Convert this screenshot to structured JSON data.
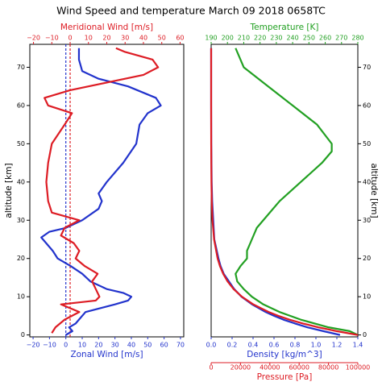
{
  "title": "Wind Speed and temperature March 09 2018 0658TC",
  "chart_data": [
    {
      "type": "line",
      "ylabel": "altitude [km]",
      "y_side": "left",
      "ylim": [
        -0.5,
        76
      ],
      "yticks": [
        0,
        10,
        20,
        30,
        40,
        50,
        60,
        70
      ],
      "zero_lines": true,
      "x_axes": [
        {
          "position": "bottom",
          "label": "Zonal Wind [m/s]",
          "color": "#2233cc",
          "xlim": [
            -22,
            72
          ],
          "xticks": [
            {
              "value": -20,
              "label": "−20"
            },
            {
              "value": -10,
              "label": "−10"
            },
            0,
            10,
            20,
            30,
            40,
            50,
            60,
            70
          ]
        },
        {
          "position": "top",
          "label": "Meridional Wind [m/s]",
          "color": "#dd1c24",
          "xlim": [
            -22,
            62
          ],
          "xticks": [
            {
              "value": -20,
              "label": "−20"
            },
            {
              "value": -10,
              "label": "−10"
            },
            0,
            10,
            20,
            30,
            40,
            50,
            60
          ]
        }
      ],
      "series": [
        {
          "color": "#2233cc",
          "axis": 0,
          "y": [
            0,
            1,
            2,
            3,
            4,
            6,
            8,
            9,
            10,
            11,
            12,
            14,
            16,
            18,
            20,
            22,
            24,
            25.5,
            27,
            28,
            30,
            33,
            35,
            37,
            40,
            45,
            50,
            55,
            58,
            60,
            62,
            65,
            67,
            69,
            72,
            75
          ],
          "values": [
            0,
            4,
            2,
            6,
            8,
            12,
            30,
            38,
            40,
            35,
            25,
            15,
            10,
            3,
            -5,
            -8,
            -12,
            -15,
            -10,
            0,
            10,
            20,
            22,
            20,
            25,
            35,
            43,
            45,
            50,
            58,
            55,
            38,
            20,
            10,
            8,
            8
          ]
        },
        {
          "color": "#dd1c24",
          "axis": 1,
          "y": [
            0.5,
            2,
            4,
            6,
            8,
            9,
            10,
            12,
            14,
            16,
            18,
            20,
            22,
            24,
            26,
            28,
            30,
            32,
            35,
            40,
            45,
            50,
            55,
            58,
            60,
            62,
            64,
            66,
            68,
            70,
            72,
            74,
            75
          ],
          "values": [
            -10,
            -8,
            -3,
            5,
            -5,
            14,
            16,
            14,
            12,
            15,
            8,
            3,
            5,
            2,
            -5,
            -3,
            5,
            -10,
            -12,
            -13,
            -12,
            -10,
            -3,
            1,
            -12,
            -14,
            0,
            20,
            40,
            48,
            45,
            30,
            25
          ]
        }
      ]
    },
    {
      "type": "line",
      "ylabel": "altitude [km]",
      "y_side": "right",
      "ylim": [
        -0.5,
        76
      ],
      "yticks": [
        0,
        10,
        20,
        30,
        40,
        50,
        60,
        70
      ],
      "x_axes": [
        {
          "position": "top",
          "label": "Temperature [K]",
          "color": "#22a022",
          "xlim": [
            190,
            280
          ],
          "xticks": [
            190,
            200,
            210,
            220,
            230,
            240,
            250,
            260,
            270,
            280
          ]
        },
        {
          "position": "bottom",
          "label": "Density [kg/m^3]",
          "color": "#2233cc",
          "xlim": [
            0,
            1.4
          ],
          "xticks": [
            {
              "value": 0,
              "label": "0.0"
            },
            0.2,
            0.4,
            0.6,
            0.8,
            {
              "value": 1,
              "label": "1.0"
            },
            1.2,
            1.4
          ]
        },
        {
          "position": "bottom2",
          "label": "Pressure [Pa]",
          "color": "#dd1c24",
          "xlim": [
            0,
            100000
          ],
          "xticks": [
            0,
            20000,
            40000,
            60000,
            80000,
            100000
          ]
        }
      ],
      "series": [
        {
          "color": "#22a022",
          "axis": 0,
          "y": [
            0,
            1,
            2,
            4,
            6,
            8,
            10,
            12,
            14,
            16,
            18,
            20,
            22,
            24,
            26,
            28,
            30,
            35,
            40,
            45,
            48,
            50,
            55,
            60,
            65,
            70,
            75
          ],
          "values": [
            280,
            275,
            262,
            245,
            232,
            222,
            215,
            210,
            206,
            205,
            208,
            212,
            212,
            214,
            216,
            218,
            222,
            232,
            245,
            258,
            264,
            264,
            255,
            240,
            225,
            210,
            205
          ]
        },
        {
          "color": "#2233cc",
          "axis": 1,
          "y": [
            0,
            1,
            2,
            3,
            4,
            5,
            6,
            8,
            10,
            12,
            14,
            16,
            18,
            20,
            25,
            30,
            35,
            40,
            50,
            60,
            75
          ],
          "values": [
            1.23,
            1.07,
            0.92,
            0.8,
            0.69,
            0.6,
            0.52,
            0.39,
            0.29,
            0.22,
            0.17,
            0.12,
            0.09,
            0.07,
            0.03,
            0.02,
            0.01,
            0.005,
            0.001,
            0,
            0
          ]
        },
        {
          "color": "#dd1c24",
          "axis": 2,
          "y": [
            0,
            1,
            2,
            3,
            4,
            5,
            6,
            8,
            10,
            12,
            14,
            16,
            18,
            20,
            25,
            30,
            35,
            40,
            50,
            60,
            75
          ],
          "values": [
            100000,
            85500,
            73200,
            62600,
            53500,
            45800,
            39200,
            28700,
            21000,
            15300,
            11200,
            8200,
            6000,
            4400,
            2000,
            920,
            420,
            190,
            40,
            8,
            0
          ]
        }
      ]
    }
  ]
}
